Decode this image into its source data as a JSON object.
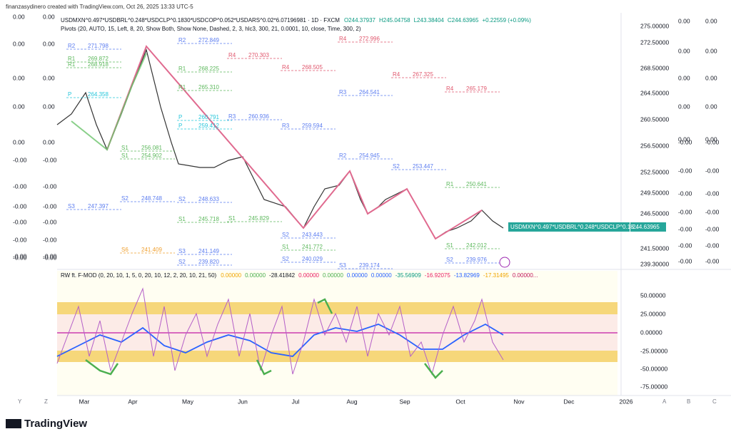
{
  "header": {
    "credit": "finanzasydinero created with TradingView.com, Oct 26, 2025 13:33 UTC-5"
  },
  "legend": {
    "symbol": "USDMXN^0.497*USDBRL^0.248*USDCLP^0.1830*USDCOP^0.052*USDARS^0.02*6.07196981 · 1D · FXCM",
    "open": "O244.37937",
    "high": "H245.04758",
    "low": "L243.38404",
    "close": "C244.63965",
    "change": "+0.22559 (+0.09%)",
    "pivots": "Pivots (20, AUTO, 15, Left, 8, 20, Show Both, Show None, Dashed, 2, 3, hlc3, 300, 21, 0.0001, 10, close, Time, 300, 2)"
  },
  "oscillator": {
    "name": "RW ft. F-MOD (0, 20, 10, 1, 5, 0, 20, 10, 12, 2, 20, 10, 21, 50)",
    "values": [
      "0.00000",
      "0.00000",
      "-28.41842",
      "0.00000",
      "0.00000",
      "0.00000",
      "0.00000",
      "-35.56909",
      "-16.92075",
      "-13.82969",
      "-17.31495",
      "0.00000..."
    ],
    "axis": [
      "50.00000",
      "25.00000",
      "0.00000",
      "-25.00000",
      "-50.00000",
      "-75.00000"
    ]
  },
  "price_axis": [
    "275.00000",
    "272.50000",
    "268.50000",
    "264.50000",
    "260.50000",
    "256.50000",
    "252.50000",
    "249.50000",
    "246.50000",
    "241.50000",
    "239.30000"
  ],
  "last_price": {
    "symbol": "USDMXN^0.497*USDBRL^0.248*USDCLP^0.18...",
    "price": "244.63965"
  },
  "left_axis_a": [
    "0.00",
    "0.00",
    "0.00",
    "0.00",
    "0.00",
    "-0.00",
    "-0.00",
    "-0.00",
    "-0.00",
    "-0.00",
    "-0.00",
    "-0.00"
  ],
  "left_axis_b": [
    "0.00",
    "0.00",
    "0.00",
    "0.00",
    "0.00",
    "-0.00",
    "-0.00",
    "-0.00",
    "-0.00",
    "-0.00",
    "-0.00",
    "-0.00"
  ],
  "right_axis_a": [
    "0.00",
    "0.00",
    "0.00",
    "0.00",
    "0.00",
    "-0.00",
    "-0.00",
    "-0.00",
    "-0.00",
    "-0.00",
    "-0.00",
    "-0.00"
  ],
  "right_axis_b": [
    "0.00",
    "0.00",
    "0.00",
    "0.00",
    "0.00",
    "-0.00",
    "-0.00",
    "-0.00",
    "-0.00",
    "-0.00",
    "-0.00",
    "-0.00"
  ],
  "time_axis": [
    "Mar",
    "Apr",
    "May",
    "Jun",
    "Jul",
    "Aug",
    "Sep",
    "Oct",
    "Nov",
    "Dec",
    "2026"
  ],
  "toolbar_left": [
    "Y",
    "Z"
  ],
  "toolbar_right": [
    "A",
    "B",
    "C"
  ],
  "pivots": [
    {
      "level": "R2",
      "price": "271.798"
    },
    {
      "level": "R1",
      "price": "269.872"
    },
    {
      "level": "R1",
      "price": "268.918"
    },
    {
      "level": "P",
      "price": "264.358"
    },
    {
      "level": "S3",
      "price": "247.397"
    },
    {
      "level": "R2",
      "price": "272.849"
    },
    {
      "level": "R1",
      "price": "268.225"
    },
    {
      "level": "R1",
      "price": "265.310"
    },
    {
      "level": "P",
      "price": "260.791"
    },
    {
      "level": "P",
      "price": "259.412"
    },
    {
      "level": "S1",
      "price": "256.081"
    },
    {
      "level": "S1",
      "price": "254.902"
    },
    {
      "level": "S2",
      "price": "248.748"
    },
    {
      "level": "S6",
      "price": "241.409"
    },
    {
      "level": "S2",
      "price": "248.633"
    },
    {
      "level": "S1",
      "price": "245.718"
    },
    {
      "level": "S3",
      "price": "241.149"
    },
    {
      "level": "S2",
      "price": "239.820"
    },
    {
      "level": "R4",
      "price": "270.303"
    },
    {
      "level": "R3",
      "price": "260.936"
    },
    {
      "level": "S1",
      "price": "245.829"
    },
    {
      "level": "R4",
      "price": "268.505"
    },
    {
      "level": "R3",
      "price": "259.594"
    },
    {
      "level": "S2",
      "price": "243.443"
    },
    {
      "level": "S1",
      "price": "241.772"
    },
    {
      "level": "S2",
      "price": "240.029"
    },
    {
      "level": "R4",
      "price": "272.996"
    },
    {
      "level": "R3",
      "price": "264.541"
    },
    {
      "level": "R2",
      "price": "254.945"
    },
    {
      "level": "S3",
      "price": "239.174"
    },
    {
      "level": "R4",
      "price": "267.325"
    },
    {
      "level": "S2",
      "price": "253.447"
    },
    {
      "level": "R4",
      "price": "265.179"
    },
    {
      "level": "R1",
      "price": "250.641"
    },
    {
      "level": "S1",
      "price": "242.012"
    },
    {
      "level": "S2",
      "price": "239.976"
    }
  ],
  "footer": {
    "brand": "TradingView"
  }
}
